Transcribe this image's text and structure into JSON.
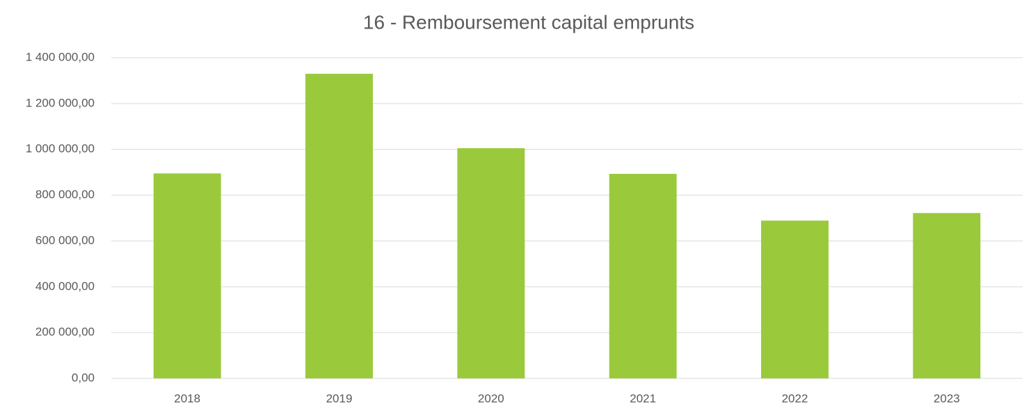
{
  "chart_data": {
    "type": "bar",
    "title": "16 - Remboursement capital emprunts",
    "categories": [
      "2018",
      "2019",
      "2020",
      "2021",
      "2022",
      "2023"
    ],
    "values": [
      895000,
      1330000,
      1005000,
      893000,
      689000,
      722000
    ],
    "color": "#9aca3c",
    "ylim": [
      0,
      1400000
    ],
    "yticks": [
      {
        "value": 0,
        "label": "0,00"
      },
      {
        "value": 200000,
        "label": "200 000,00"
      },
      {
        "value": 400000,
        "label": "400 000,00"
      },
      {
        "value": 600000,
        "label": "600 000,00"
      },
      {
        "value": 800000,
        "label": "800 000,00"
      },
      {
        "value": 1000000,
        "label": "1 000 000,00"
      },
      {
        "value": 1200000,
        "label": "1 200 000,00"
      },
      {
        "value": 1400000,
        "label": "1 400 000,00"
      }
    ],
    "grid": true
  }
}
